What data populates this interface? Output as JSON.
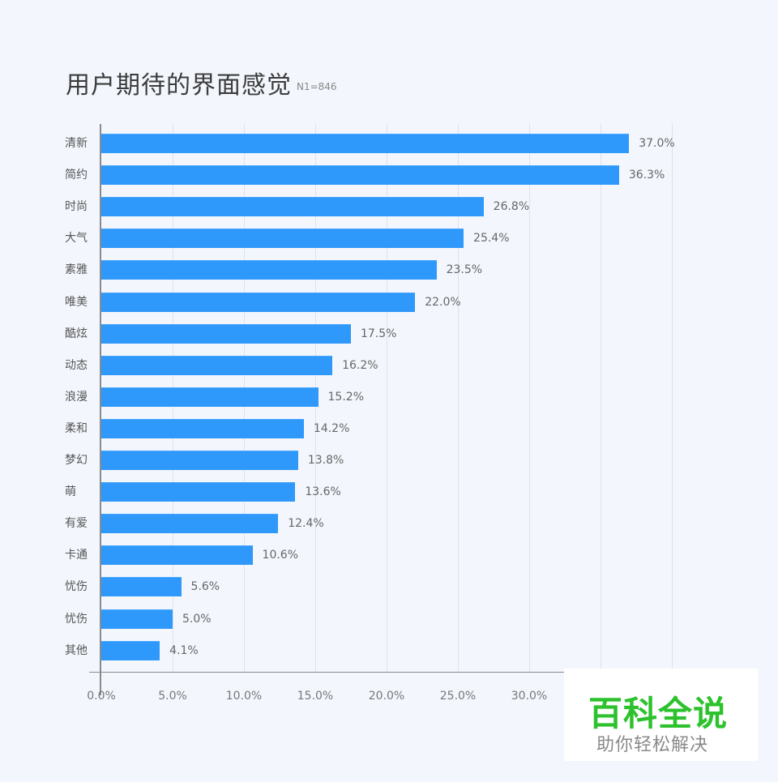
{
  "title": "用户期待的界面感觉",
  "subtitle": "N1=846",
  "colors": {
    "bar": "#2f99fb",
    "background": "#f3f7fd",
    "watermark_green": "#2dc22d"
  },
  "x_ticks": [
    "0.0%",
    "5.0%",
    "10.0%",
    "15.0%",
    "20.0%",
    "25.0%",
    "30.0%"
  ],
  "watermark": {
    "main": "百科全说",
    "sub": "助你轻松解决"
  },
  "rows": [
    {
      "label": "清新",
      "value": 37.0,
      "text": "37.0%"
    },
    {
      "label": "简约",
      "value": 36.3,
      "text": "36.3%"
    },
    {
      "label": "时尚",
      "value": 26.8,
      "text": "26.8%"
    },
    {
      "label": "大气",
      "value": 25.4,
      "text": "25.4%"
    },
    {
      "label": "素雅",
      "value": 23.5,
      "text": "23.5%"
    },
    {
      "label": "唯美",
      "value": 22.0,
      "text": "22.0%"
    },
    {
      "label": "酷炫",
      "value": 17.5,
      "text": "17.5%"
    },
    {
      "label": "动态",
      "value": 16.2,
      "text": "16.2%"
    },
    {
      "label": "浪漫",
      "value": 15.2,
      "text": "15.2%"
    },
    {
      "label": "柔和",
      "value": 14.2,
      "text": "14.2%"
    },
    {
      "label": "梦幻",
      "value": 13.8,
      "text": "13.8%"
    },
    {
      "label": "萌",
      "value": 13.6,
      "text": "13.6%"
    },
    {
      "label": "有爱",
      "value": 12.4,
      "text": "12.4%"
    },
    {
      "label": "卡通",
      "value": 10.6,
      "text": "10.6%"
    },
    {
      "label": "忧伤",
      "value": 5.6,
      "text": "5.6%"
    },
    {
      "label": "忧伤",
      "value": 5.0,
      "text": "5.0%"
    },
    {
      "label": "其他",
      "value": 4.1,
      "text": "4.1%"
    }
  ],
  "chart_data": {
    "type": "bar",
    "orientation": "horizontal",
    "title": "用户期待的界面感觉",
    "subtitle": "N1=846",
    "categories": [
      "清新",
      "简约",
      "时尚",
      "大气",
      "素雅",
      "唯美",
      "酷炫",
      "动态",
      "浪漫",
      "柔和",
      "梦幻",
      "萌",
      "有爱",
      "卡通",
      "忧伤",
      "忧伤",
      "其他"
    ],
    "values": [
      37.0,
      36.3,
      26.8,
      25.4,
      23.5,
      22.0,
      17.5,
      16.2,
      15.2,
      14.2,
      13.8,
      13.6,
      12.4,
      10.6,
      5.6,
      5.0,
      4.1
    ],
    "xlabel": "",
    "ylabel": "",
    "xlim": [
      0,
      40
    ],
    "x_tick_labels": [
      "0.0%",
      "5.0%",
      "10.0%",
      "15.0%",
      "20.0%",
      "25.0%",
      "30.0%"
    ],
    "grid": true,
    "legend": null,
    "data_labels": true,
    "unit": "%"
  }
}
